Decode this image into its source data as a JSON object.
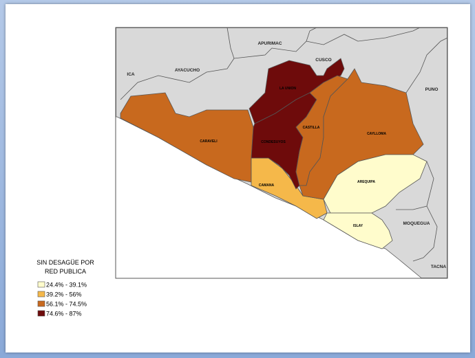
{
  "map": {
    "regions": [
      {
        "label": "CARAVELI",
        "color": "#c8691e"
      },
      {
        "label": "CAMANA",
        "color": "#f5b84a"
      },
      {
        "label": "LA UNION",
        "color": "#6e0b0b"
      },
      {
        "label": "CONDESUYOS",
        "color": "#6e0b0b"
      },
      {
        "label": "CASTILLA",
        "color": "#c8691e"
      },
      {
        "label": "CAYLLOMA",
        "color": "#c8691e"
      },
      {
        "label": "AREQUIPA",
        "color": "#fffccc"
      },
      {
        "label": "ISLAY",
        "color": "#fffccc"
      }
    ],
    "neighbors": [
      "APURIMAC",
      "CUSCO",
      "AYACUCHO",
      "ICA",
      "PUNO",
      "MOQUEGUA",
      "TACNA"
    ],
    "legend": {
      "title_lines": [
        "SIN DESAGÜE POR",
        "RED PUBLICA"
      ],
      "items": [
        {
          "label": "24.4% - 39.1%",
          "color": "#fffccc"
        },
        {
          "label": "39.2% - 56%",
          "color": "#f5b84a"
        },
        {
          "label": "56.1% - 74.5%",
          "color": "#c8691e"
        },
        {
          "label": "74.6% - 87%",
          "color": "#6e0b0b"
        }
      ]
    }
  }
}
